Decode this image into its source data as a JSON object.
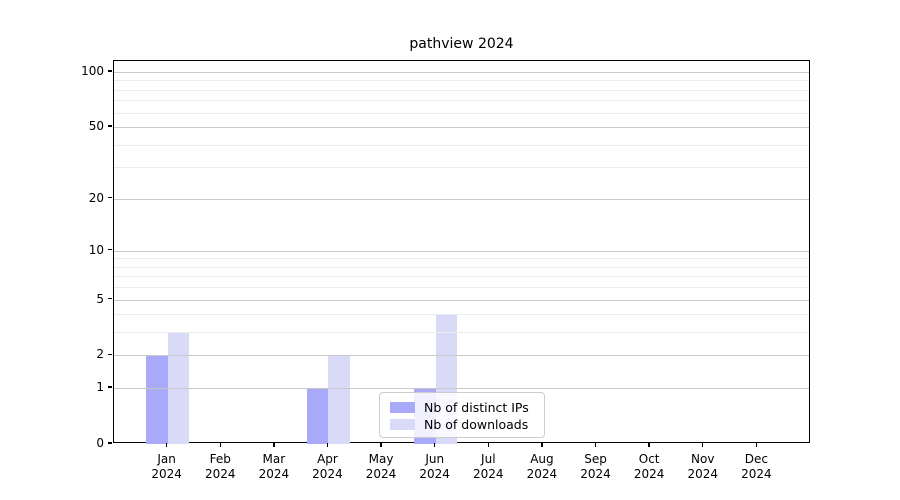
{
  "title": "pathview 2024",
  "chart_data": {
    "type": "bar",
    "title": "pathview 2024",
    "categories": [
      "Jan",
      "Feb",
      "Mar",
      "Apr",
      "May",
      "Jun",
      "Jul",
      "Aug",
      "Sep",
      "Oct",
      "Nov",
      "Dec"
    ],
    "category_year": "2024",
    "series": [
      {
        "name": "Nb of distinct IPs",
        "color": "#a9a9fa",
        "values": [
          2,
          0,
          0,
          1,
          0,
          1,
          0,
          0,
          0,
          0,
          0,
          0
        ]
      },
      {
        "name": "Nb of downloads",
        "color": "#d9d9f8",
        "values": [
          3,
          0,
          0,
          2,
          0,
          4,
          0,
          0,
          0,
          0,
          0,
          0
        ]
      }
    ],
    "y_scale": "log1p",
    "y_major_ticks": [
      0,
      1,
      2,
      5,
      10,
      20,
      50,
      100
    ],
    "y_minor_ticks": [
      3,
      4,
      6,
      7,
      8,
      9,
      30,
      40,
      60,
      70,
      80,
      90
    ],
    "ylim": [
      0,
      115
    ],
    "xlabel": "",
    "ylabel": "",
    "grid": "on",
    "legend_position": "bottom-center",
    "frame_color": "#000000",
    "major_grid_color": "#c8c8c8",
    "minor_grid_color": "#ececec"
  }
}
